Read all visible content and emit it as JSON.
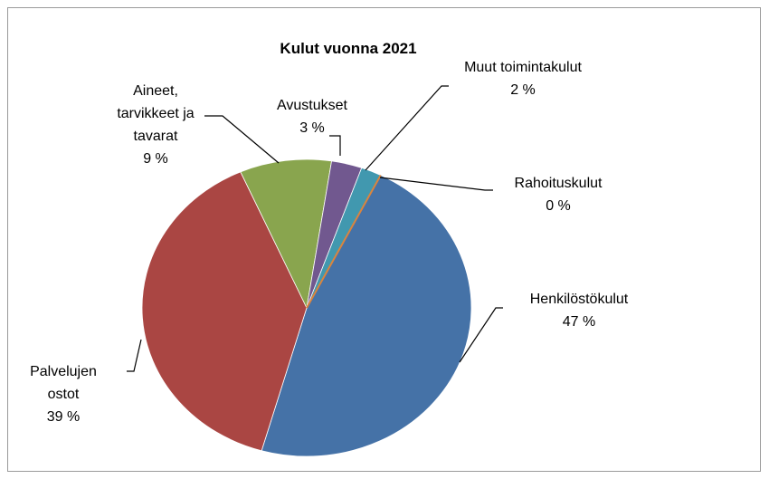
{
  "chart_data": {
    "type": "pie",
    "title": "Kulut vuonna 2021",
    "categories": [
      "Henkilöstökulut",
      "Palvelujen ostot",
      "Aineet, tarvikkeet ja tavarat",
      "Avustukset",
      "Muut toimintakulut",
      "Rahoituskulut"
    ],
    "values": [
      47,
      39,
      9,
      3,
      2,
      0
    ],
    "value_labels": [
      "47 %",
      "39 %",
      "9 %",
      "3 %",
      "2 %",
      "0 %"
    ],
    "colors": [
      "#4572a7",
      "#aa4643",
      "#89a54e",
      "#71588f",
      "#4198af",
      "#db843d"
    ]
  }
}
